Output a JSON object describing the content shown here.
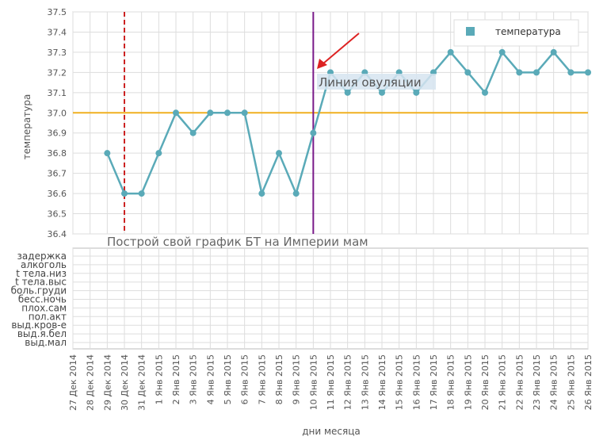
{
  "chart_data": {
    "type": "line",
    "subtitle": "Построй свой график БТ на Империи мам",
    "y_label": "температура",
    "x_label": "дни месяца",
    "categories": [
      "27 Дек 2014",
      "28 Дек 2014",
      "29 Дек 2014",
      "30 Дек 2014",
      "31 Дек 2014",
      "1 Янв 2015",
      "2 Янв 2015",
      "3 Янв 2015",
      "4 Янв 2015",
      "5 Янв 2015",
      "6 Янв 2015",
      "7 Янв 2015",
      "8 Янв 2015",
      "9 Янв 2015",
      "10 Янв 2015",
      "11 Янв 2015",
      "12 Янв 2015",
      "13 Янв 2015",
      "14 Янв 2015",
      "15 Янв 2015",
      "16 Янв 2015",
      "17 Янв 2015",
      "18 Янв 2015",
      "19 Янв 2015",
      "20 Янв 2015",
      "21 Янв 2015",
      "22 Янв 2015",
      "23 Янв 2015",
      "24 Янв 2015",
      "25 Янв 2015",
      "26 Янв 2015"
    ],
    "series": [
      {
        "name": "температура",
        "color": "#5aaab8",
        "values": [
          null,
          null,
          36.8,
          36.6,
          36.6,
          36.8,
          37.0,
          36.9,
          37.0,
          37.0,
          37.0,
          36.6,
          36.8,
          36.6,
          36.9,
          37.2,
          37.1,
          37.2,
          37.1,
          37.2,
          37.1,
          37.2,
          37.3,
          37.2,
          37.1,
          37.3,
          37.2,
          37.2,
          37.3,
          37.2,
          37.2
        ]
      }
    ],
    "ylim": [
      36.4,
      37.5
    ],
    "yticks": [
      36.4,
      36.5,
      36.6,
      36.7,
      36.8,
      36.9,
      {
        "value": 37,
        "label": "37.0"
      },
      37.1,
      37.2,
      37.3,
      37.4,
      37.5
    ],
    "grid": true,
    "legend": "top-right",
    "reference_line": {
      "value": 37,
      "color": "#f0b020"
    },
    "vlines": [
      {
        "x": "30 Дек 2014",
        "color": "#cc2222",
        "dash": true
      },
      {
        "x": "10 Янв 2015",
        "color": "#7a1a8a",
        "dash": false
      }
    ],
    "annotation": "Линия овуляции",
    "rows": [
      "задержка",
      "алкоголь",
      "t тела.низ",
      "t тела.выс",
      "боль.груди",
      "бесс.ночь",
      "плох.сам",
      "пол.акт",
      "выд.кров-е",
      "выд.я.бел",
      "выд.мал"
    ]
  }
}
